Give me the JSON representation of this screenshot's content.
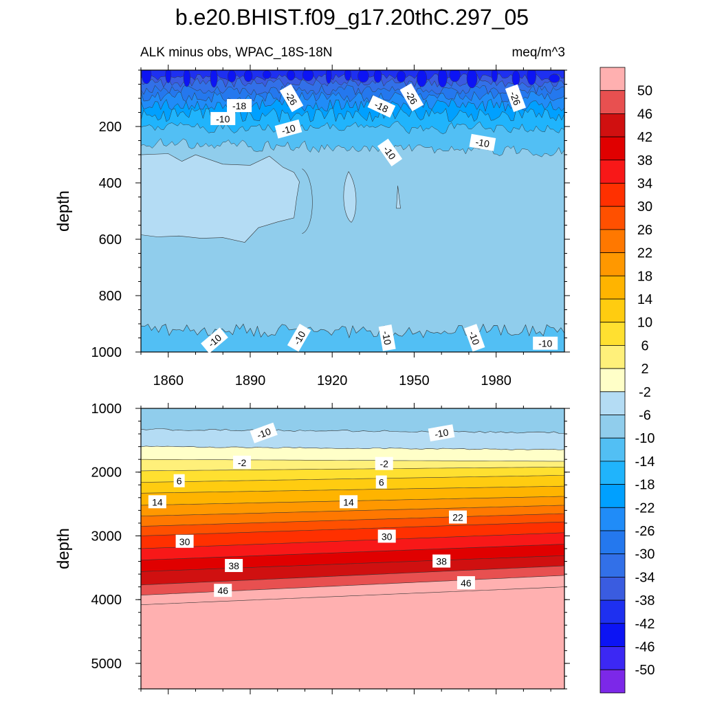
{
  "chart_data": {
    "type": "contour",
    "title": "b.e20.BHIST.f09_g17.20thC.297_05",
    "subtitle_left": "ALK minus obs, WPAC_18S-18N",
    "subtitle_right": "meq/m^3",
    "x_range": [
      1850,
      2005
    ],
    "x_ticks": [
      "1860",
      "1890",
      "1920",
      "1950",
      "1980"
    ],
    "colorbar": {
      "labels": [
        "50",
        "46",
        "42",
        "38",
        "34",
        "30",
        "26",
        "22",
        "18",
        "14",
        "10",
        "6",
        "2",
        "-2",
        "-6",
        "-10",
        "-14",
        "-18",
        "-22",
        "-26",
        "-30",
        "-34",
        "-38",
        "-42",
        "-46",
        "-50"
      ],
      "colors": [
        "#ffb0b0",
        "#e85050",
        "#d01010",
        "#e00000",
        "#f81818",
        "#ff3000",
        "#ff5000",
        "#ff7800",
        "#ff9800",
        "#ffb400",
        "#ffcc10",
        "#ffe030",
        "#fff07a",
        "#ffffc8",
        "#b4dcf4",
        "#90cdec",
        "#52bff4",
        "#20b4fc",
        "#00a0ff",
        "#208cf8",
        "#2478ee",
        "#3270e8",
        "#3a5ce0",
        "#1e30f0",
        "#0c14f4",
        "#3c28f4",
        "#7c28e8"
      ]
    },
    "panels": [
      {
        "name": "upper",
        "y_label": "depth",
        "y_range": [
          0,
          1000
        ],
        "y_ticks": [
          "200",
          "400",
          "600",
          "800",
          "1000"
        ],
        "contour_labels": [
          {
            "text": "-18",
            "x": 1886,
            "y": 127,
            "rotate": 0
          },
          {
            "text": "-26",
            "x": 1905,
            "y": 100,
            "rotate": 60
          },
          {
            "text": "-10",
            "x": 1880,
            "y": 173,
            "rotate": 0
          },
          {
            "text": "-10",
            "x": 1904,
            "y": 210,
            "rotate": -15
          },
          {
            "text": "-18",
            "x": 1938,
            "y": 130,
            "rotate": 25
          },
          {
            "text": "-26",
            "x": 1949,
            "y": 97,
            "rotate": 60
          },
          {
            "text": "-10",
            "x": 1941,
            "y": 293,
            "rotate": 55
          },
          {
            "text": "-26",
            "x": 1987,
            "y": 100,
            "rotate": 70
          },
          {
            "text": "-10",
            "x": 1975,
            "y": 258,
            "rotate": 10
          },
          {
            "text": "-10",
            "x": 1877,
            "y": 960,
            "rotate": -40
          },
          {
            "text": "-10",
            "x": 1908,
            "y": 950,
            "rotate": -60
          },
          {
            "text": "-10",
            "x": 1940,
            "y": 950,
            "rotate": 80
          },
          {
            "text": "-10",
            "x": 1972,
            "y": 950,
            "rotate": 70
          },
          {
            "text": "-10",
            "x": 1998,
            "y": 970,
            "rotate": 0
          }
        ]
      },
      {
        "name": "lower",
        "y_label": "depth",
        "y_range": [
          1000,
          5400
        ],
        "y_ticks": [
          "1000",
          "2000",
          "3000",
          "4000",
          "5000"
        ],
        "contour_labels": [
          {
            "text": "-10",
            "x": 1895,
            "y": 1390,
            "rotate": -20
          },
          {
            "text": "-10",
            "x": 1960,
            "y": 1390,
            "rotate": -10
          },
          {
            "text": "-2",
            "x": 1887,
            "y": 1850,
            "rotate": 0
          },
          {
            "text": "-2",
            "x": 1939,
            "y": 1870,
            "rotate": 0
          },
          {
            "text": "6",
            "x": 1864,
            "y": 2140,
            "rotate": 0
          },
          {
            "text": "6",
            "x": 1938,
            "y": 2160,
            "rotate": 0
          },
          {
            "text": "14",
            "x": 1856,
            "y": 2470,
            "rotate": 0
          },
          {
            "text": "14",
            "x": 1926,
            "y": 2470,
            "rotate": 0
          },
          {
            "text": "22",
            "x": 1966,
            "y": 2710,
            "rotate": 0
          },
          {
            "text": "30",
            "x": 1866,
            "y": 3090,
            "rotate": 0
          },
          {
            "text": "30",
            "x": 1940,
            "y": 3010,
            "rotate": 0
          },
          {
            "text": "38",
            "x": 1884,
            "y": 3470,
            "rotate": 0
          },
          {
            "text": "38",
            "x": 1960,
            "y": 3400,
            "rotate": 0
          },
          {
            "text": "46",
            "x": 1880,
            "y": 3860,
            "rotate": 0
          },
          {
            "text": "46",
            "x": 1969,
            "y": 3740,
            "rotate": 0
          }
        ]
      }
    ]
  }
}
